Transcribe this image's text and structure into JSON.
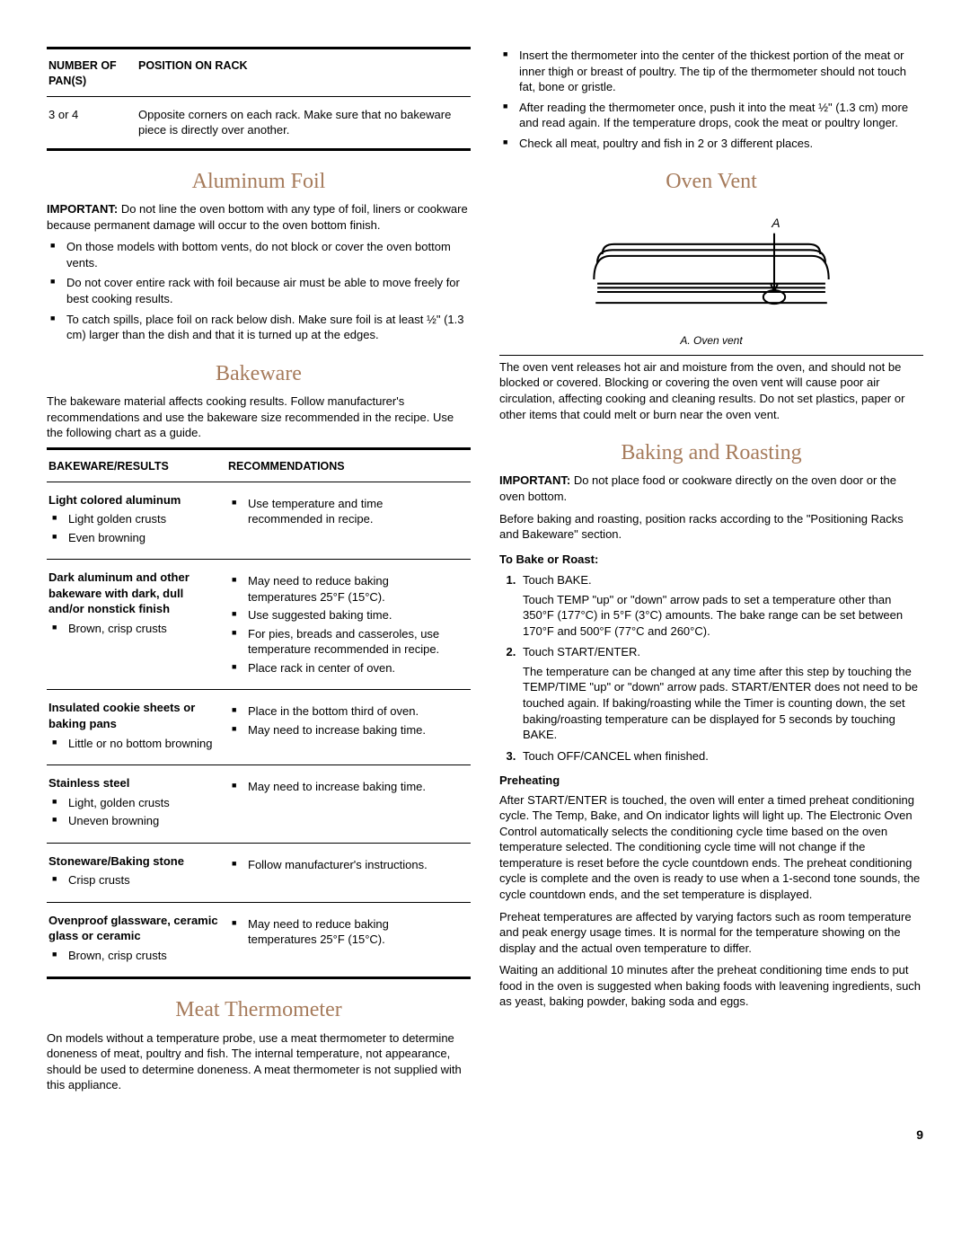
{
  "colors": {
    "heading": "#a67b5b",
    "text": "#000000",
    "rule": "#000000",
    "background": "#ffffff"
  },
  "left": {
    "pan_table": {
      "headers": [
        "NUMBER OF PAN(S)",
        "POSITION ON RACK"
      ],
      "row": {
        "pans": "3 or 4",
        "position": "Opposite corners on each rack. Make sure that no bakeware piece is directly over another."
      }
    },
    "aluminum": {
      "title": "Aluminum Foil",
      "important_label": "IMPORTANT:",
      "important": " Do not line the oven bottom with any type of foil, liners or cookware because permanent damage will occur to the oven bottom finish.",
      "bullets": [
        "On those models with bottom vents, do not block or cover the oven bottom vents.",
        "Do not cover entire rack with foil because air must be able to move freely for best cooking results.",
        "To catch spills, place foil on rack below dish. Make sure foil is at least ½\" (1.3 cm) larger than the dish and that it is turned up at the edges."
      ]
    },
    "bakeware": {
      "title": "Bakeware",
      "intro": "The bakeware material affects cooking results. Follow manufacturer's recommendations and use the bakeware size recommended in the recipe. Use the following chart as a guide.",
      "headers": [
        "BAKEWARE/RESULTS",
        "RECOMMENDATIONS"
      ],
      "rows": [
        {
          "title": "Light colored aluminum",
          "results": [
            "Light golden crusts",
            "Even browning"
          ],
          "recs": [
            "Use temperature and time recommended in recipe."
          ]
        },
        {
          "title": "Dark aluminum and other bakeware with dark, dull and/or nonstick finish",
          "results": [
            "Brown, crisp crusts"
          ],
          "recs": [
            "May need to reduce baking temperatures 25°F (15°C).",
            "Use suggested baking time.",
            "For pies, breads and casseroles, use temperature recommended in recipe.",
            "Place rack in center of oven."
          ]
        },
        {
          "title": "Insulated cookie sheets or baking pans",
          "results": [
            "Little or no bottom browning"
          ],
          "recs": [
            "Place in the bottom third of oven.",
            "May need to increase baking time."
          ]
        },
        {
          "title": "Stainless steel",
          "results": [
            "Light, golden crusts",
            "Uneven browning"
          ],
          "recs": [
            "May need to increase baking time."
          ]
        },
        {
          "title": "Stoneware/Baking stone",
          "results": [
            "Crisp crusts"
          ],
          "recs": [
            "Follow manufacturer's instructions."
          ]
        },
        {
          "title": "Ovenproof glassware, ceramic glass or ceramic",
          "results": [
            "Brown, crisp crusts"
          ],
          "recs": [
            "May need to reduce baking temperatures 25°F (15°C)."
          ]
        }
      ]
    },
    "meat": {
      "title": "Meat Thermometer",
      "text": "On models without a temperature probe, use a meat thermometer to determine doneness of meat, poultry and fish. The internal temperature, not appearance, should be used to determine doneness. A meat thermometer is not supplied with this appliance."
    }
  },
  "right": {
    "therm_bullets": [
      "Insert the thermometer into the center of the thickest portion of the meat or inner thigh or breast of poultry. The tip of the thermometer should not touch fat, bone or gristle.",
      "After reading the thermometer once, push it into the meat ½\" (1.3 cm) more and read again. If the temperature drops, cook the meat or poultry longer.",
      "Check all meat, poultry and fish in 2 or 3 different places."
    ],
    "vent": {
      "title": "Oven Vent",
      "label_a": "A",
      "caption": "A. Oven vent",
      "text": "The oven vent releases hot air and moisture from the oven, and should not be blocked or covered. Blocking or covering the oven vent will cause poor air circulation, affecting cooking and cleaning results. Do not set plastics, paper or other items that could melt or burn near the oven vent."
    },
    "baking": {
      "title": "Baking and Roasting",
      "important_label": "IMPORTANT:",
      "important": " Do not place food or cookware directly on the oven door or the oven bottom.",
      "pre": "Before baking and roasting, position racks according to the \"Positioning Racks and Bakeware\" section.",
      "bake_head": "To Bake or Roast:",
      "steps": [
        {
          "lead": "Touch BAKE.",
          "body": "Touch TEMP \"up\" or \"down\" arrow pads to set a temperature other than 350°F (177°C) in 5°F (3°C) amounts. The bake range can be set between 170°F and 500°F (77°C and 260°C)."
        },
        {
          "lead": "Touch START/ENTER.",
          "body": "The temperature can be changed at any time after this step by touching the TEMP/TIME \"up\" or \"down\" arrow pads. START/ENTER does not need to be touched again. If baking/roasting while the Timer is counting down, the set baking/roasting temperature can be displayed for 5 seconds by touching BAKE."
        },
        {
          "lead": "Touch OFF/CANCEL when finished.",
          "body": ""
        }
      ],
      "preheat_head": "Preheating",
      "preheat_paras": [
        "After START/ENTER is touched, the oven will enter a timed preheat conditioning cycle. The Temp, Bake, and On indicator lights will light up. The Electronic Oven Control automatically selects the conditioning cycle time based on the oven temperature selected. The conditioning cycle time will not change if the temperature is reset before the cycle countdown ends. The preheat conditioning cycle is complete and the oven is ready to use when a 1-second tone sounds, the cycle countdown ends, and the set temperature is displayed.",
        "Preheat temperatures are affected by varying factors such as room temperature and peak energy usage times. It is normal for the temperature showing on the display and the actual oven temperature to differ.",
        "Waiting an additional 10 minutes after the preheat conditioning time ends to put food in the oven is suggested when baking foods with leavening ingredients, such as yeast, baking powder, baking soda and eggs."
      ]
    }
  },
  "page_number": "9"
}
